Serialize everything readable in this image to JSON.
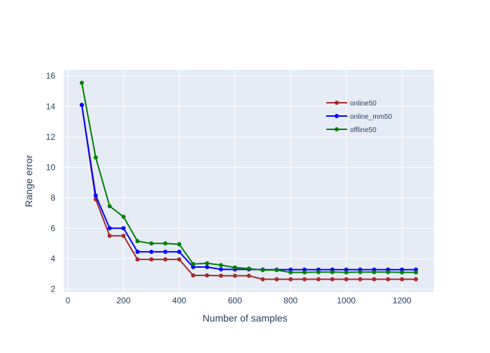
{
  "chart_data": {
    "type": "line",
    "title": "",
    "xlabel": "Number of samples",
    "ylabel": "Range error",
    "xlim": [
      -15,
      1315
    ],
    "ylim": [
      1.8,
      16.4
    ],
    "xticks": [
      0,
      200,
      400,
      600,
      800,
      1000,
      1200
    ],
    "yticks": [
      2,
      4,
      6,
      8,
      10,
      12,
      14,
      16
    ],
    "grid": true,
    "legend_position": "top-right",
    "plot_background": "#E5ECF6",
    "x": [
      50,
      100,
      150,
      200,
      250,
      300,
      350,
      400,
      450,
      500,
      550,
      600,
      650,
      700,
      750,
      800,
      850,
      900,
      950,
      1000,
      1050,
      1100,
      1150,
      1200,
      1250
    ],
    "series": [
      {
        "name": "online50",
        "color": "#A52A2A",
        "values": [
          14.1,
          7.9,
          5.5,
          5.5,
          3.95,
          3.95,
          3.95,
          3.95,
          2.9,
          2.9,
          2.88,
          2.88,
          2.88,
          2.65,
          2.65,
          2.65,
          2.65,
          2.65,
          2.65,
          2.65,
          2.65,
          2.65,
          2.65,
          2.65,
          2.65
        ]
      },
      {
        "name": "online_mm50",
        "color": "#0000FF",
        "values": [
          14.1,
          8.15,
          6.0,
          6.0,
          4.45,
          4.45,
          4.45,
          4.45,
          3.45,
          3.45,
          3.3,
          3.3,
          3.3,
          3.28,
          3.28,
          3.28,
          3.28,
          3.28,
          3.28,
          3.28,
          3.28,
          3.28,
          3.28,
          3.28,
          3.28
        ]
      },
      {
        "name": "offline50",
        "color": "#008000",
        "values": [
          15.55,
          10.65,
          7.45,
          6.75,
          5.15,
          5.0,
          5.0,
          4.95,
          3.65,
          3.7,
          3.58,
          3.42,
          3.35,
          3.25,
          3.25,
          3.1,
          3.1,
          3.12,
          3.12,
          3.1,
          3.12,
          3.12,
          3.12,
          3.1,
          3.1
        ]
      }
    ]
  }
}
